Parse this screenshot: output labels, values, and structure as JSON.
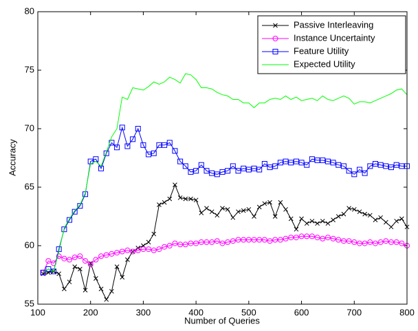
{
  "chart_data": {
    "type": "line",
    "x_label": "Number of Queries",
    "y_label": "Accuracy",
    "xlim": [
      100,
      800
    ],
    "xticks": [
      100,
      200,
      300,
      400,
      500,
      600,
      700,
      800
    ],
    "ylim": [
      55,
      80
    ],
    "yticks": [
      55,
      60,
      65,
      70,
      75,
      80
    ],
    "legend": "upper right",
    "x": [
      110,
      120,
      130,
      140,
      150,
      160,
      170,
      180,
      190,
      200,
      210,
      220,
      230,
      240,
      250,
      260,
      270,
      280,
      290,
      300,
      310,
      320,
      330,
      340,
      350,
      360,
      370,
      380,
      390,
      400,
      410,
      420,
      430,
      440,
      450,
      460,
      470,
      480,
      490,
      500,
      510,
      520,
      530,
      540,
      550,
      560,
      570,
      580,
      590,
      600,
      610,
      620,
      630,
      640,
      650,
      660,
      670,
      680,
      690,
      700,
      710,
      720,
      730,
      740,
      750,
      760,
      770,
      780,
      790,
      800
    ],
    "series": [
      {
        "name": "Passive Interleaving",
        "color": "#000000",
        "marker": "x",
        "values": [
          57.6,
          57.7,
          57.8,
          57.6,
          56.3,
          56.9,
          58.2,
          58.0,
          56.2,
          58.5,
          57.2,
          56.3,
          55.4,
          56.1,
          58.2,
          57.3,
          58.8,
          59.5,
          59.8,
          60.0,
          60.3,
          61.0,
          63.5,
          63.7,
          64.0,
          65.2,
          64.1,
          64.0,
          64.0,
          63.9,
          62.8,
          63.2,
          62.9,
          62.6,
          63.2,
          63.1,
          62.4,
          62.9,
          63.0,
          63.1,
          62.5,
          63.3,
          63.6,
          63.7,
          62.5,
          63.7,
          63.1,
          62.3,
          61.4,
          62.3,
          61.9,
          62.1,
          61.9,
          62.1,
          61.9,
          62.2,
          62.5,
          62.7,
          63.2,
          63.1,
          62.9,
          62.7,
          62.6,
          62.2,
          62.4,
          62.0,
          61.6,
          62.1,
          62.3,
          61.6
        ]
      },
      {
        "name": "Instance Uncertainty",
        "color": "#ff00ff",
        "marker": "circle",
        "values": [
          57.7,
          58.7,
          58.5,
          59.1,
          58.9,
          58.8,
          59.0,
          59.1,
          58.7,
          58.4,
          58.8,
          59.1,
          59.2,
          59.3,
          59.4,
          59.5,
          59.6,
          59.5,
          59.6,
          59.7,
          59.7,
          59.6,
          59.7,
          59.9,
          60.0,
          60.2,
          60.1,
          60.1,
          60.2,
          60.2,
          60.3,
          60.3,
          60.3,
          60.4,
          60.2,
          60.3,
          60.4,
          60.5,
          60.5,
          60.5,
          60.5,
          60.5,
          60.5,
          60.4,
          60.5,
          60.5,
          60.6,
          60.7,
          60.7,
          60.8,
          60.8,
          60.8,
          60.7,
          60.6,
          60.7,
          60.6,
          60.5,
          60.4,
          60.4,
          60.3,
          60.2,
          60.2,
          60.3,
          60.2,
          60.3,
          60.4,
          60.3,
          60.3,
          60.2,
          60.0
        ]
      },
      {
        "name": "Feature Utility",
        "color": "#0000ff",
        "marker": "square",
        "values": [
          57.7,
          58.0,
          57.8,
          59.7,
          61.4,
          62.2,
          62.9,
          63.4,
          64.4,
          67.2,
          67.4,
          66.6,
          67.9,
          68.8,
          68.4,
          70.1,
          68.5,
          69.1,
          70.0,
          68.6,
          67.8,
          67.9,
          68.6,
          68.6,
          68.8,
          68.1,
          67.2,
          66.8,
          66.3,
          66.4,
          66.9,
          66.4,
          66.2,
          66.1,
          66.3,
          66.4,
          66.8,
          66.4,
          66.6,
          66.5,
          66.6,
          66.5,
          67.0,
          66.7,
          66.8,
          67.1,
          67.2,
          67.1,
          67.2,
          67.1,
          66.9,
          67.4,
          67.3,
          67.3,
          67.2,
          67.1,
          66.9,
          66.8,
          66.4,
          66.1,
          66.5,
          66.2,
          66.8,
          67.0,
          66.9,
          66.8,
          66.7,
          66.9,
          66.8,
          66.8
        ]
      },
      {
        "name": "Expected Utility",
        "color": "#00ff00",
        "marker": "none",
        "values": [
          57.7,
          58.0,
          57.8,
          59.5,
          61.5,
          62.3,
          63.0,
          63.5,
          64.5,
          67.0,
          67.2,
          66.8,
          68.0,
          69.3,
          70.0,
          72.7,
          72.5,
          73.5,
          73.4,
          73.3,
          73.6,
          74.0,
          73.8,
          74.0,
          74.4,
          74.2,
          73.9,
          74.7,
          74.6,
          74.2,
          73.5,
          73.5,
          73.4,
          73.1,
          72.9,
          72.8,
          72.5,
          72.5,
          72.2,
          72.2,
          71.8,
          72.2,
          72.2,
          72.5,
          72.6,
          72.5,
          72.8,
          72.5,
          72.7,
          72.4,
          72.5,
          72.6,
          72.4,
          72.8,
          72.5,
          72.4,
          72.6,
          72.8,
          72.6,
          72.1,
          72.3,
          72.3,
          72.2,
          72.4,
          72.6,
          72.8,
          73.0,
          73.3,
          73.4,
          72.9
        ]
      }
    ]
  }
}
